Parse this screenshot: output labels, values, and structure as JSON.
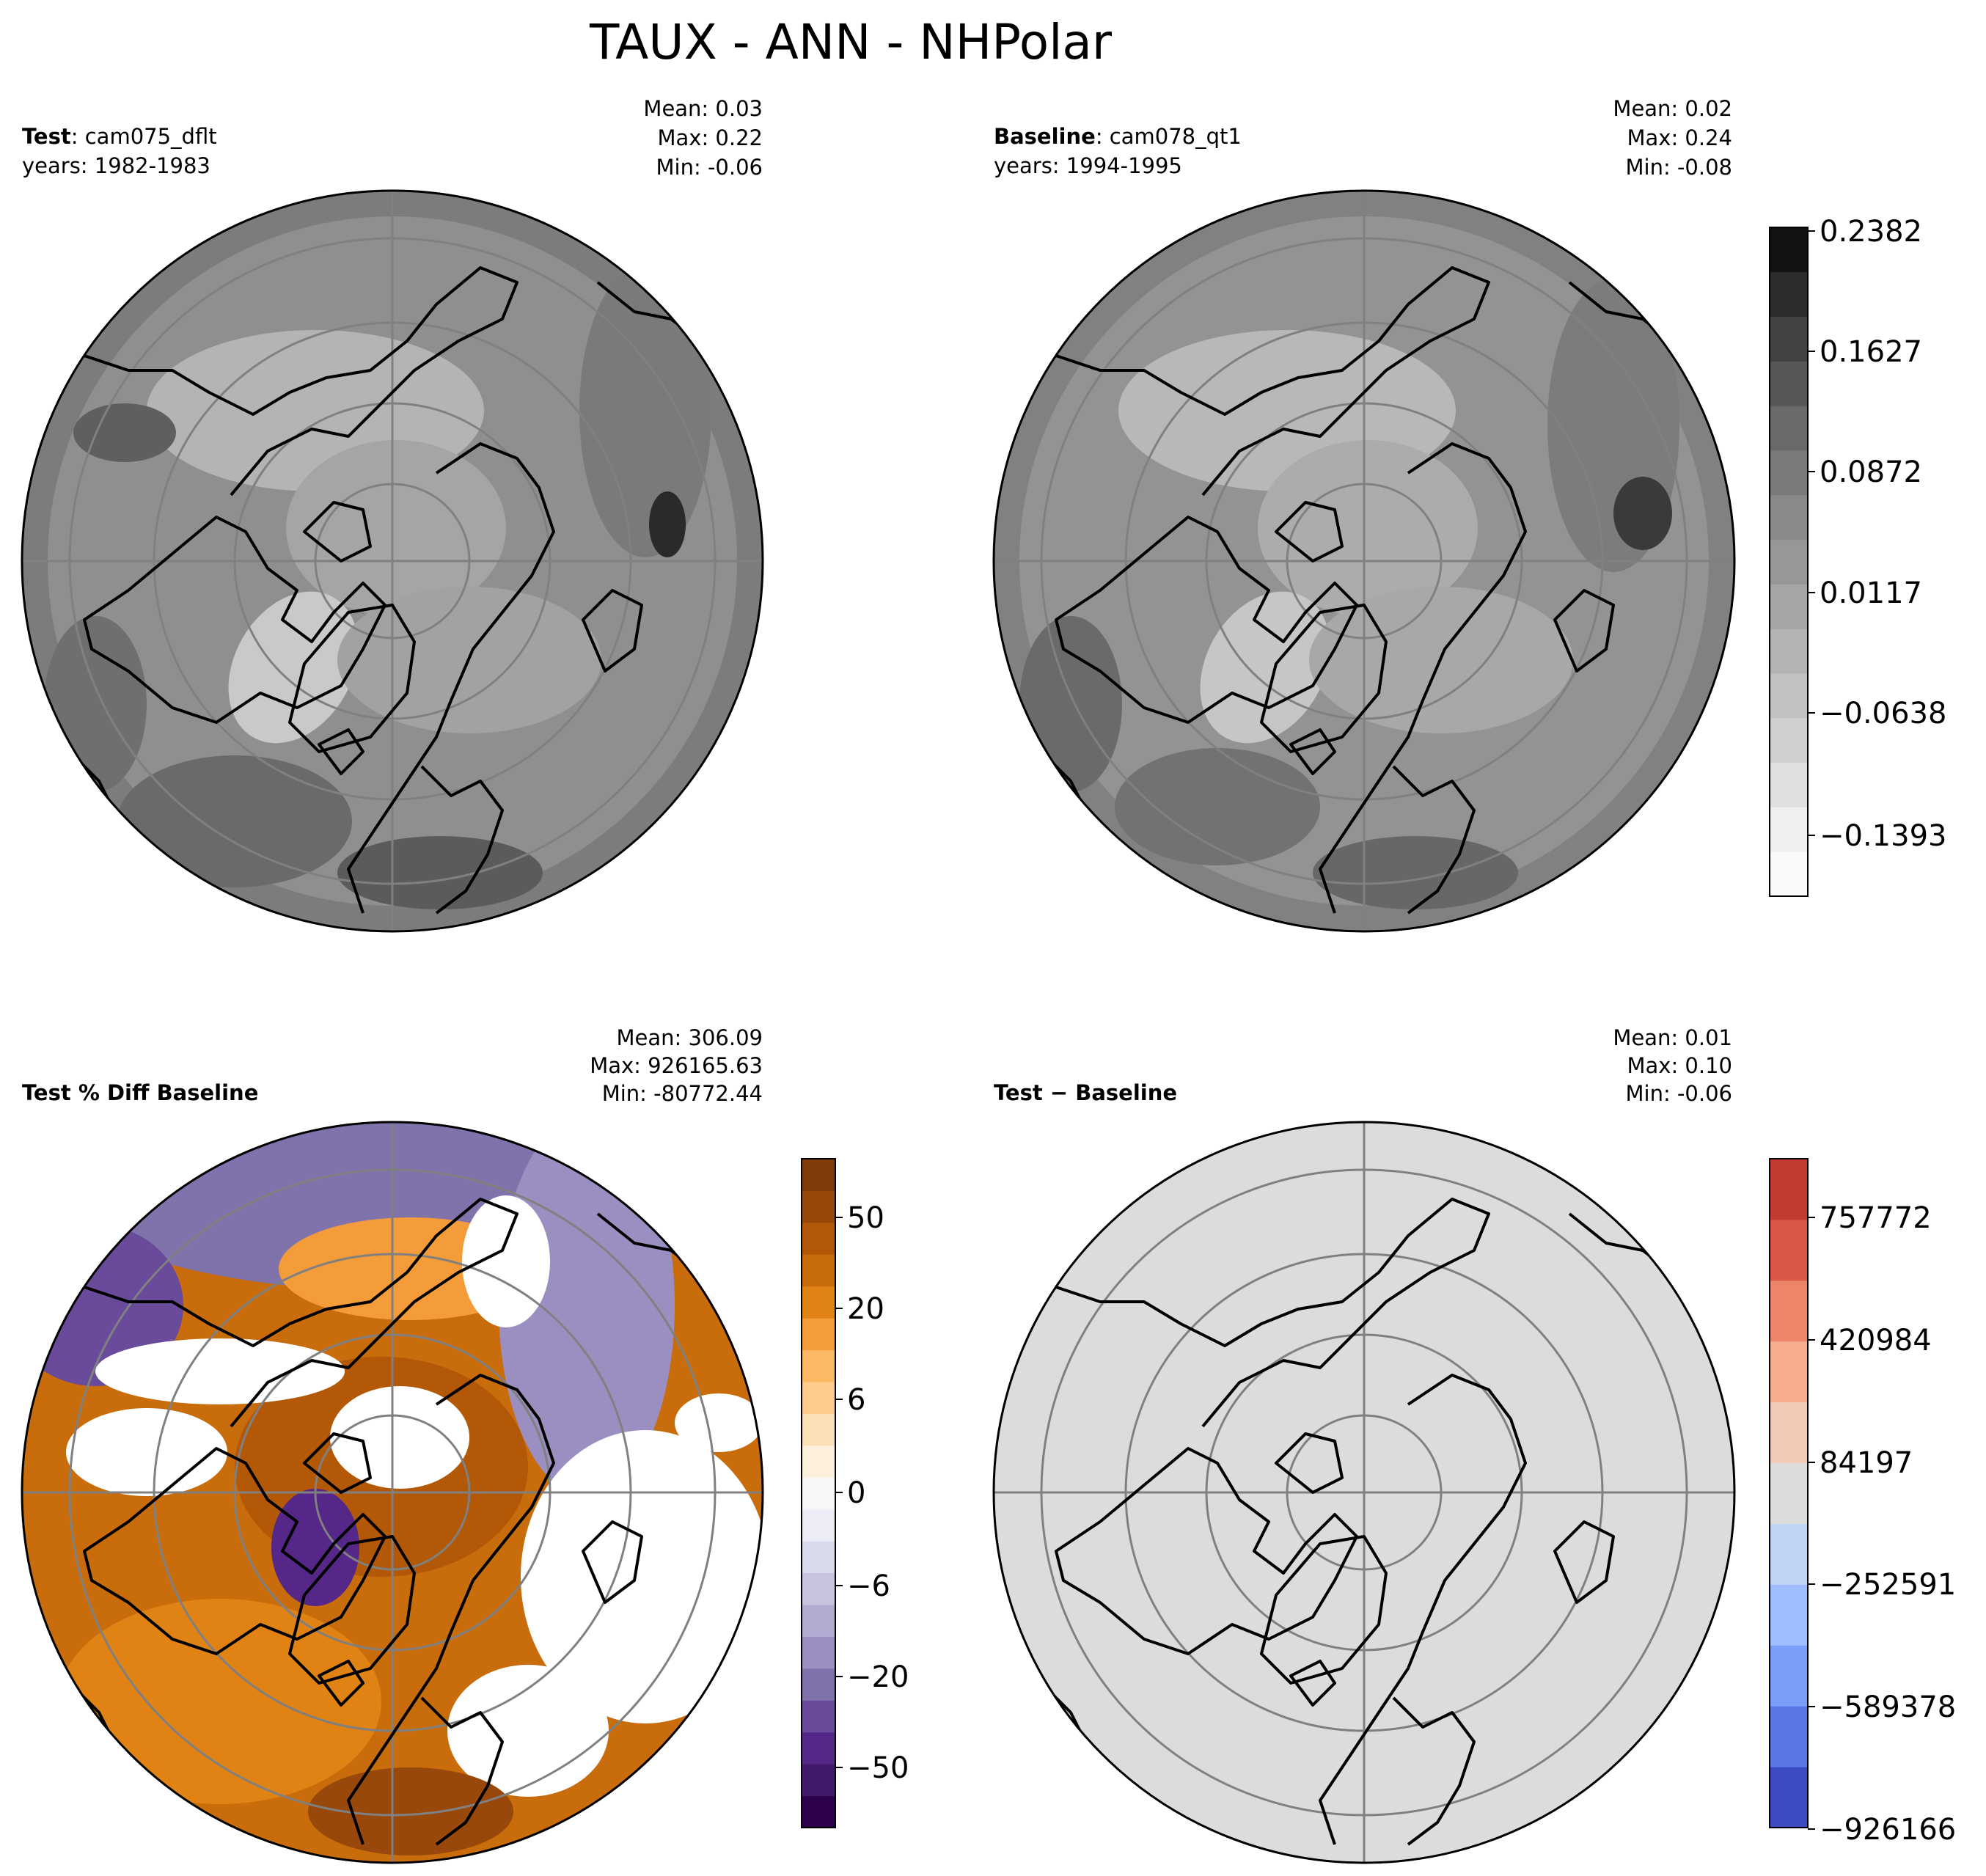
{
  "title": "TAUX - ANN - NHPolar",
  "panels": [
    {
      "id": "test",
      "label_bold": "Test",
      "label_rest": ": cam075_dflt",
      "years": "years: 1982-1983",
      "stats": [
        "Mean:  0.03",
        "Max:  0.22",
        "Min: -0.06"
      ]
    },
    {
      "id": "baseline",
      "label_bold": "Baseline",
      "label_rest": ": cam078_qt1",
      "years": "years: 1994-1995",
      "stats": [
        "Mean:  0.02",
        "Max:  0.24",
        "Min: -0.08"
      ]
    },
    {
      "id": "pctdiff",
      "label_bold": "Test % Diff Baseline",
      "label_rest": "",
      "years": "",
      "stats": [
        "Mean: 306.09",
        "Max: 926165.63",
        "Min: -80772.44"
      ]
    },
    {
      "id": "diff",
      "label_bold": "Test − Baseline",
      "label_rest": "",
      "years": "",
      "stats": [
        "Mean:  0.01",
        "Max:  0.10",
        "Min: -0.06"
      ]
    }
  ],
  "colorbars": {
    "gray": {
      "ticks": [
        "0.2382",
        "0.1627",
        "0.0872",
        "0.0117",
        "−0.0638",
        "−0.1393"
      ],
      "colors": [
        "#fafafa",
        "#efefef",
        "#e0e0e0",
        "#d0d0d0",
        "#c2c2c2",
        "#b3b3b3",
        "#a5a5a5",
        "#979797",
        "#898989",
        "#7a7a7a",
        "#6a6a6a",
        "#575757",
        "#434343",
        "#2c2c2c",
        "#121212"
      ]
    },
    "brbg": {
      "ticks": [
        "50",
        "20",
        "6",
        "0",
        "−6",
        "−20",
        "−50"
      ],
      "colors": [
        "#2d004b",
        "#3f1a6a",
        "#542788",
        "#6a4a9a",
        "#8073ac",
        "#9a8fc0",
        "#b2abd2",
        "#c8c4e0",
        "#d8daeb",
        "#ebecf5",
        "#f7f7f7",
        "#fdf0dc",
        "#fee0b6",
        "#fdcb8a",
        "#fdb863",
        "#f49c3a",
        "#e08214",
        "#c86c0c",
        "#b35806",
        "#98480a",
        "#7f3b08"
      ]
    },
    "coolwarm": {
      "ticks": [
        "757772",
        "420984",
        "84197",
        "−252591",
        "−589378",
        "−926166"
      ],
      "colors": [
        "#3b4cc0",
        "#5a78e4",
        "#7b9ff9",
        "#9ebeff",
        "#c0d4f5",
        "#dcdcdc",
        "#f2cbb7",
        "#f7ac8e",
        "#ee8468",
        "#d95847",
        "#c33b32"
      ]
    }
  },
  "map_colors": {
    "test_base": "#8f8f8f",
    "baseline_base": "#939393",
    "pct_base": "#c86c0c",
    "diff_base": "#dcdcdc",
    "coast": "#000000",
    "grid": "#808080"
  }
}
